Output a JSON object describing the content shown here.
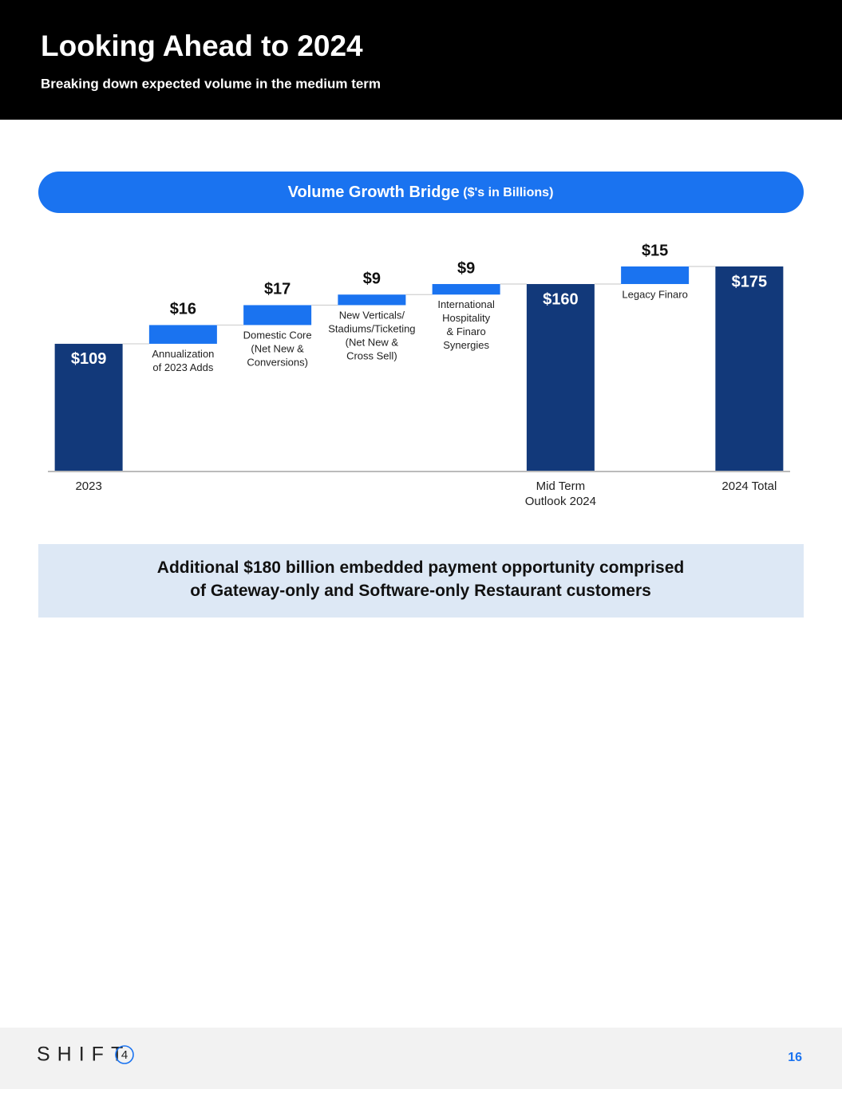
{
  "header": {
    "title": "Looking Ahead to 2024",
    "subtitle": "Breaking down expected volume in the medium term"
  },
  "chart_data": {
    "type": "waterfall",
    "title": "Volume Growth Bridge",
    "subtitle": "($'s in Billions)",
    "categories": [
      "2023",
      null,
      null,
      null,
      null,
      "Mid Term\nOutlook 2024",
      null,
      "2024 Total"
    ],
    "bar_labels": [
      null,
      "Annualization\nof 2023 Adds",
      "Domestic Core\n(Net New &\nConversions)",
      "New Verticals/\nStadiums/Ticketing\n(Net New &\nCross Sell)",
      "International\nHospitality\n& Finaro\nSynergies",
      null,
      "Legacy Finaro",
      null
    ],
    "values": [
      109,
      16,
      17,
      9,
      9,
      160,
      15,
      175
    ],
    "value_labels": [
      "$109",
      "$16",
      "$17",
      "$9",
      "$9",
      "$160",
      "$15",
      "$175"
    ],
    "measure": [
      "total",
      "relative",
      "relative",
      "relative",
      "relative",
      "total",
      "relative",
      "total"
    ],
    "colors": {
      "total": "#12397a",
      "relative": "#1a73f0"
    }
  },
  "callout": "Additional $180 billion embedded payment opportunity comprised\nof Gateway-only and Software-only Restaurant customers",
  "footer": {
    "logo": "SHIFT",
    "logo_mark": "4",
    "page": "16"
  }
}
